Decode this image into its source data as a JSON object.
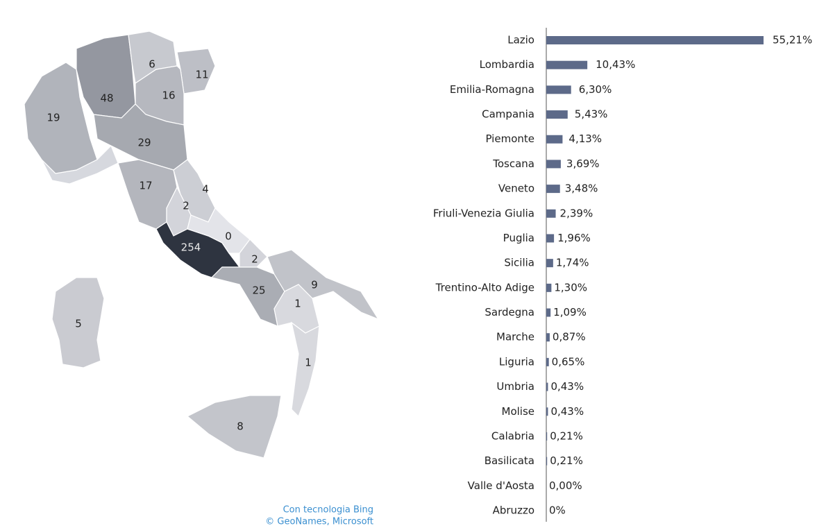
{
  "chart_data": [
    {
      "type": "map",
      "values": [
        48,
        6,
        11,
        16,
        19,
        29,
        17,
        4,
        2,
        254,
        0,
        2,
        25,
        9,
        1,
        5,
        1,
        8
      ],
      "color_range": [
        "#e3e4e9",
        "#2e3440"
      ],
      "attribution": [
        "Con tecnologia Bing",
        "© GeoNames, Microsoft"
      ]
    },
    {
      "type": "bar",
      "orientation": "horizontal",
      "color": "#5d6a89",
      "categories": [
        "Lazio",
        "Lombardia",
        "Emilia-Romagna",
        "Campania",
        "Piemonte",
        "Toscana",
        "Veneto",
        "Friuli-Venezia Giulia",
        "Puglia",
        "Sicilia",
        "Trentino-Alto Adige",
        "Sardegna",
        "Marche",
        "Liguria",
        "Umbria",
        "Molise",
        "Calabria",
        "Basilicata",
        "Valle d'Aosta",
        "Abruzzo"
      ],
      "values": [
        55.21,
        10.43,
        6.3,
        5.43,
        4.13,
        3.69,
        3.48,
        2.39,
        1.96,
        1.74,
        1.3,
        1.09,
        0.87,
        0.65,
        0.43,
        0.43,
        0.21,
        0.21,
        0.0,
        0
      ],
      "value_labels": [
        "55,21%",
        "10,43%",
        "6,30%",
        "5,43%",
        "4,13%",
        "3,69%",
        "3,48%",
        "2,39%",
        "1,96%",
        "1,74%",
        "1,30%",
        "1,09%",
        "0,87%",
        "0,65%",
        "0,43%",
        "0,43%",
        "0,21%",
        "0,21%",
        "0,00%",
        "0%"
      ]
    }
  ]
}
